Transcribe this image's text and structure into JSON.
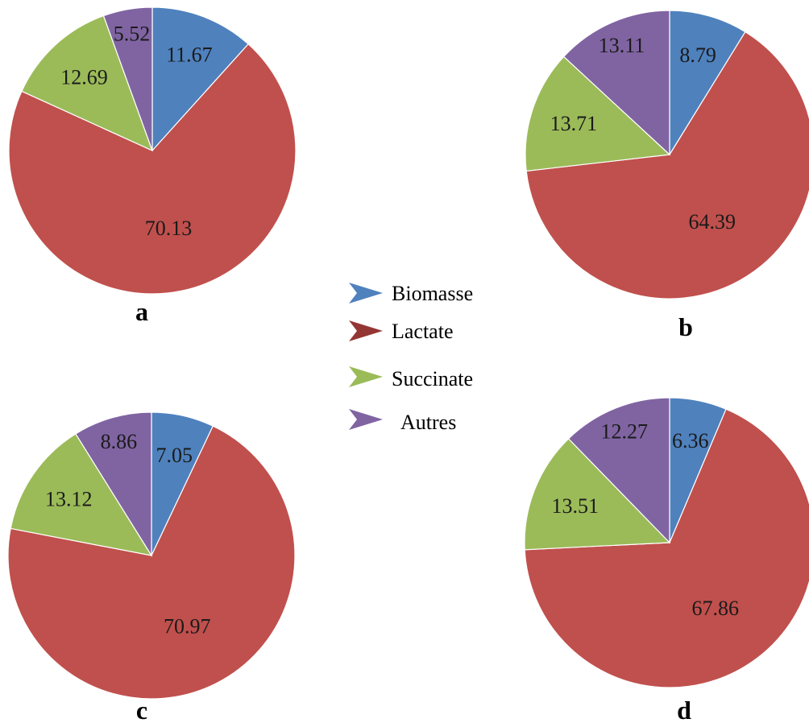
{
  "chart_data": [
    {
      "type": "pie",
      "panel": "a",
      "categories": [
        "Biomasse",
        "Lactate",
        "Succinate",
        "Autres"
      ],
      "values": [
        11.67,
        70.13,
        12.69,
        5.52
      ]
    },
    {
      "type": "pie",
      "panel": "b",
      "categories": [
        "Biomasse",
        "Lactate",
        "Succinate",
        "Autres"
      ],
      "values": [
        8.79,
        64.39,
        13.71,
        13.11
      ]
    },
    {
      "type": "pie",
      "panel": "c",
      "categories": [
        "Biomasse",
        "Lactate",
        "Succinate",
        "Autres"
      ],
      "values": [
        7.05,
        70.97,
        13.12,
        8.86
      ]
    },
    {
      "type": "pie",
      "panel": "d",
      "categories": [
        "Biomasse",
        "Lactate",
        "Succinate",
        "Autres"
      ],
      "values": [
        6.36,
        67.86,
        13.51,
        12.27
      ]
    }
  ],
  "legend": {
    "placement": "center",
    "entries": [
      {
        "label": "Biomasse",
        "color": "#4f81bd"
      },
      {
        "label": "Lactate",
        "color": "#943634"
      },
      {
        "label": "Succinate",
        "color": "#9bbb59"
      },
      {
        "label": "Autres",
        "color": "#8064a2"
      }
    ]
  },
  "slice_colors": [
    "#4f81bd",
    "#c0504d",
    "#9bbb59",
    "#8064a2"
  ]
}
